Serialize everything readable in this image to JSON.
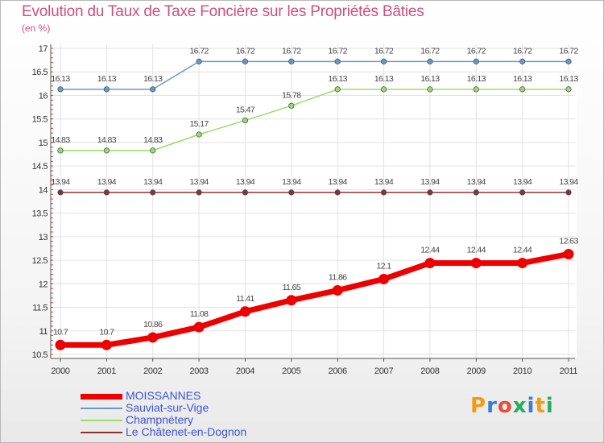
{
  "title": "Evolution du Taux de Taxe Foncière sur les Propriétés Bâties",
  "subtitle": "(en %)",
  "logo": {
    "text": "Proxiti",
    "letters": [
      "P",
      "r",
      "o",
      "x",
      "i",
      "t",
      "i"
    ],
    "colors": [
      "#f39c12",
      "#3a7bd5",
      "#e74c3c",
      "#27ae60",
      "#3a7bd5",
      "#f39c12",
      "#27ae60"
    ]
  },
  "chart_data": {
    "type": "line",
    "title": "Evolution du Taux de Taxe Foncière sur les Propriétés Bâties",
    "ylabel": "(en %)",
    "x": [
      "2000",
      "2001",
      "2002",
      "2003",
      "2004",
      "2005",
      "2006",
      "2007",
      "2008",
      "2009",
      "2010",
      "2011"
    ],
    "ylim": [
      10.5,
      17
    ],
    "yticks": [
      "10.5",
      "11",
      "11.5",
      "12",
      "12.5",
      "13",
      "13.5",
      "14",
      "14.5",
      "15",
      "15.5",
      "16",
      "16.5",
      "17"
    ],
    "legend_position": "bottom-left",
    "series": [
      {
        "name": "MOISSANNES",
        "color": "#ee0000",
        "values": [
          10.7,
          10.7,
          10.86,
          11.08,
          11.41,
          11.65,
          11.86,
          12.1,
          12.44,
          12.44,
          12.44,
          12.63
        ],
        "labels": [
          "10.7",
          "10.7",
          "10.86",
          "11.08",
          "11.41",
          "11.65",
          "11.86",
          "12.1",
          "12.44",
          "12.44",
          "12.44",
          "12.63"
        ]
      },
      {
        "name": "Sauviat-sur-Vige",
        "color": "#6699cc",
        "values": [
          16.13,
          16.13,
          16.13,
          16.72,
          16.72,
          16.72,
          16.72,
          16.72,
          16.72,
          16.72,
          16.72,
          16.72
        ],
        "labels": [
          "16.13",
          "16.13",
          "16.13",
          "16.72",
          "16.72",
          "16.72",
          "16.72",
          "16.72",
          "16.72",
          "16.72",
          "16.72",
          "16.72"
        ]
      },
      {
        "name": "Champnétery",
        "color": "#99dd66",
        "values": [
          14.83,
          14.83,
          14.83,
          15.17,
          15.47,
          15.78,
          16.13,
          16.13,
          16.13,
          16.13,
          16.13,
          16.13
        ],
        "labels": [
          "14.83",
          "14.83",
          "14.83",
          "15.17",
          "15.47",
          "15.78",
          "16.13",
          "16.13",
          "16.13",
          "16.13",
          "16.13",
          "16.13"
        ]
      },
      {
        "name": "Le Châtenet-en-Dognon",
        "color": "#883333",
        "values": [
          13.94,
          13.94,
          13.94,
          13.94,
          13.94,
          13.94,
          13.94,
          13.94,
          13.94,
          13.94,
          13.94,
          13.94
        ],
        "labels": [
          "13.94",
          "13.94",
          "13.94",
          "13.94",
          "13.94",
          "13.94",
          "13.94",
          "13.94",
          "13.94",
          "13.94",
          "13.94",
          "13.94"
        ]
      }
    ]
  }
}
